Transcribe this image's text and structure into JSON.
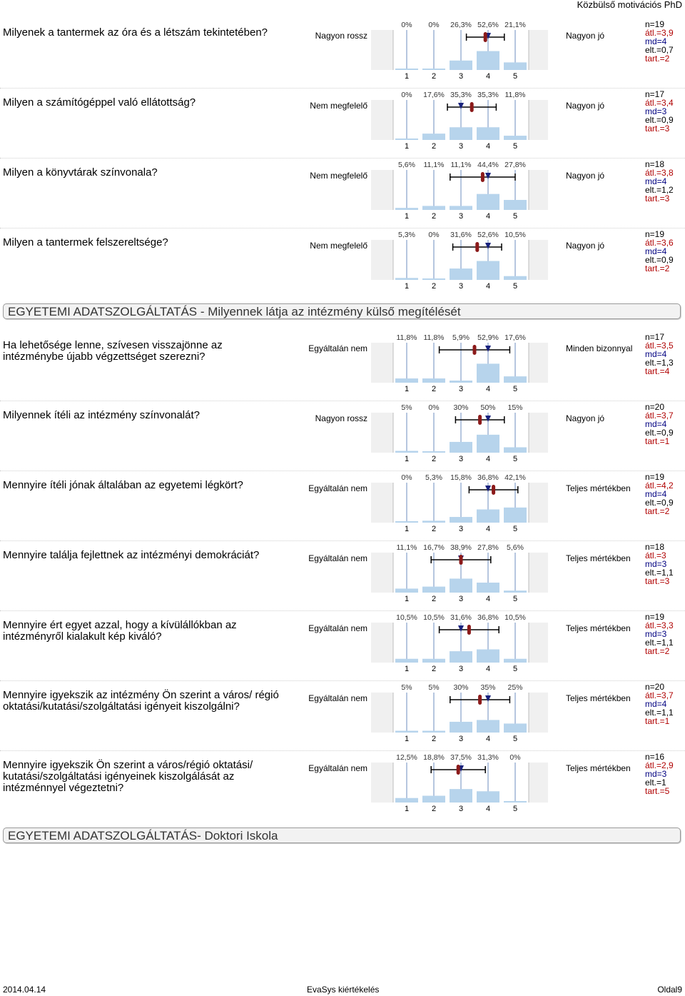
{
  "header": {
    "title": "Közbülső motivációs PhD"
  },
  "sections": [
    {
      "title": "EGYETEMI ADATSZOLGÁLTATÁS - Milyennek látja az intézmény külső megítélését"
    },
    {
      "title": "EGYETEMI ADATSZOLGÁLTATÁS- Doktori Iskola"
    }
  ],
  "scale_labels": [
    "1",
    "2",
    "3",
    "4",
    "5"
  ],
  "questions": [
    {
      "text": "Milyenek a tantermek az óra és a létszám tekintetében?",
      "left": "Nagyon rossz",
      "right": "Nagyon jó",
      "percents": [
        "0%",
        "0%",
        "26,3%",
        "52,6%",
        "21,1%"
      ],
      "values": [
        0,
        0,
        26.3,
        52.6,
        21.1
      ],
      "n": "n=19",
      "avg": "átl.=3,9",
      "md": "md=4",
      "sd": "elt.=0,7",
      "ab": "tart.=2",
      "mean": 3.9,
      "median": 4,
      "stdev": 0.7
    },
    {
      "text": "Milyen a számítógéppel való ellátottság?",
      "left": "Nem megfelelő",
      "right": "Nagyon jó",
      "percents": [
        "0%",
        "17,6%",
        "35,3%",
        "35,3%",
        "11,8%"
      ],
      "values": [
        0,
        17.6,
        35.3,
        35.3,
        11.8
      ],
      "n": "n=17",
      "avg": "átl.=3,4",
      "md": "md=3",
      "sd": "elt.=0,9",
      "ab": "tart.=3",
      "mean": 3.4,
      "median": 3,
      "stdev": 0.9
    },
    {
      "text": "Milyen a könyvtárak színvonala?",
      "left": "Nem megfelelő",
      "right": "Nagyon jó",
      "percents": [
        "5,6%",
        "11,1%",
        "11,1%",
        "44,4%",
        "27,8%"
      ],
      "values": [
        5.6,
        11.1,
        11.1,
        44.4,
        27.8
      ],
      "n": "n=18",
      "avg": "átl.=3,8",
      "md": "md=4",
      "sd": "elt.=1,2",
      "ab": "tart.=3",
      "mean": 3.8,
      "median": 4,
      "stdev": 1.2
    },
    {
      "text": "Milyen a tantermek felszereltsége?",
      "left": "Nem megfelelő",
      "right": "Nagyon jó",
      "percents": [
        "5,3%",
        "0%",
        "31,6%",
        "52,6%",
        "10,5%"
      ],
      "values": [
        5.3,
        0,
        31.6,
        52.6,
        10.5
      ],
      "n": "n=19",
      "avg": "átl.=3,6",
      "md": "md=4",
      "sd": "elt.=0,9",
      "ab": "tart.=2",
      "mean": 3.6,
      "median": 4,
      "stdev": 0.9
    },
    {
      "text": "Ha lehetősége lenne, szívesen visszajönne az intézménybe újabb végzettséget szerezni?",
      "left": "Egyáltalán nem",
      "right": "Minden bizonnyal",
      "percents": [
        "11,8%",
        "11,8%",
        "5,9%",
        "52,9%",
        "17,6%"
      ],
      "values": [
        11.8,
        11.8,
        5.9,
        52.9,
        17.6
      ],
      "n": "n=17",
      "avg": "átl.=3,5",
      "md": "md=4",
      "sd": "elt.=1,3",
      "ab": "tart.=4",
      "mean": 3.5,
      "median": 4,
      "stdev": 1.3
    },
    {
      "text": "Milyennek ítéli az intézmény színvonalát?",
      "left": "Nagyon rossz",
      "right": "Nagyon jó",
      "percents": [
        "5%",
        "0%",
        "30%",
        "50%",
        "15%"
      ],
      "values": [
        5,
        0,
        30,
        50,
        15
      ],
      "n": "n=20",
      "avg": "átl.=3,7",
      "md": "md=4",
      "sd": "elt.=0,9",
      "ab": "tart.=1",
      "mean": 3.7,
      "median": 4,
      "stdev": 0.9
    },
    {
      "text": "Mennyire ítéli jónak általában az egyetemi légkört?",
      "left": "Egyáltalán nem",
      "right": "Teljes mértékben",
      "percents": [
        "0%",
        "5,3%",
        "15,8%",
        "36,8%",
        "42,1%"
      ],
      "values": [
        0,
        5.3,
        15.8,
        36.8,
        42.1
      ],
      "n": "n=19",
      "avg": "átl.=4,2",
      "md": "md=4",
      "sd": "elt.=0,9",
      "ab": "tart.=2",
      "mean": 4.2,
      "median": 4,
      "stdev": 0.9
    },
    {
      "text": "Mennyire találja fejlettnek az intézményi demokráciát?",
      "left": "Egyáltalán nem",
      "right": "Teljes mértékben",
      "percents": [
        "11,1%",
        "16,7%",
        "38,9%",
        "27,8%",
        "5,6%"
      ],
      "values": [
        11.1,
        16.7,
        38.9,
        27.8,
        5.6
      ],
      "n": "n=18",
      "avg": "átl.=3",
      "md": "md=3",
      "sd": "elt.=1,1",
      "ab": "tart.=3",
      "mean": 3.0,
      "median": 3,
      "stdev": 1.1
    },
    {
      "text": "Mennyire ért egyet azzal, hogy a kívülállókban az intézményről kialakult kép kiváló?",
      "left": "Egyáltalán nem",
      "right": "Teljes mértékben",
      "percents": [
        "10,5%",
        "10,5%",
        "31,6%",
        "36,8%",
        "10,5%"
      ],
      "values": [
        10.5,
        10.5,
        31.6,
        36.8,
        10.5
      ],
      "n": "n=19",
      "avg": "átl.=3,3",
      "md": "md=3",
      "sd": "elt.=1,1",
      "ab": "tart.=2",
      "mean": 3.3,
      "median": 3,
      "stdev": 1.1
    },
    {
      "text": "Mennyire igyekszik az intézmény Ön szerint a város/ régió oktatási/kutatási/szolgáltatási igényeit kiszolgálni?",
      "left": "Egyáltalán nem",
      "right": "Teljes mértékben",
      "percents": [
        "5%",
        "5%",
        "30%",
        "35%",
        "25%"
      ],
      "values": [
        5,
        5,
        30,
        35,
        25
      ],
      "n": "n=20",
      "avg": "átl.=3,7",
      "md": "md=4",
      "sd": "elt.=1,1",
      "ab": "tart.=1",
      "mean": 3.7,
      "median": 4,
      "stdev": 1.1
    },
    {
      "text": "Mennyire igyekszik Ön szerint a város/régió oktatási/ kutatási/szolgáltatási igényeinek kiszolgálását az intézménnyel végeztetni?",
      "left": "Egyáltalán nem",
      "right": "Teljes mértékben",
      "percents": [
        "12,5%",
        "18,8%",
        "37,5%",
        "31,3%",
        "0%"
      ],
      "values": [
        12.5,
        18.8,
        37.5,
        31.3,
        0
      ],
      "n": "n=16",
      "avg": "átl.=2,9",
      "md": "md=3",
      "sd": "elt.=1",
      "ab": "tart.=5",
      "mean": 2.9,
      "median": 3,
      "stdev": 1.0
    }
  ],
  "colors": {
    "bar": "#b7d4ec",
    "mean": "#8b1a1a",
    "median": "#1a237e",
    "section_bg": "#f2f2f2"
  },
  "footer": {
    "date": "2014.04.14",
    "center": "EvaSys kiértékelés",
    "page": "Oldal9"
  }
}
